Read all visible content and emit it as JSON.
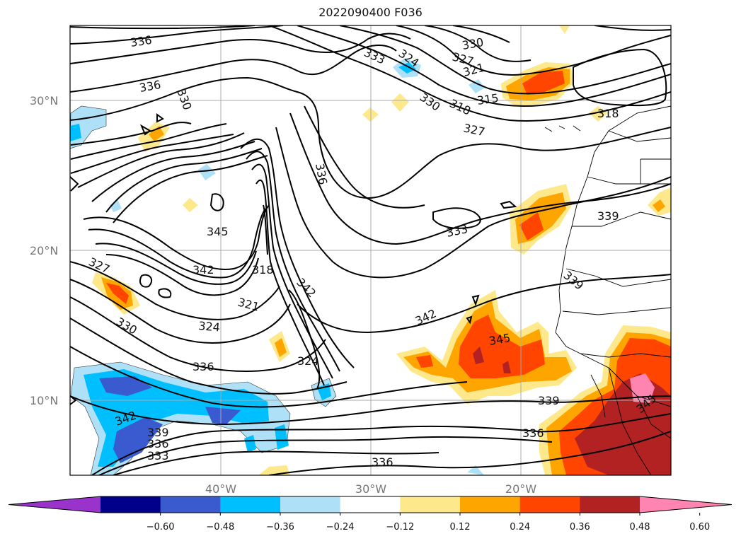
{
  "title": "2022090400 F036",
  "map": {
    "lat_ticks": [
      "30°N",
      "20°N",
      "10°N"
    ],
    "lon_ticks": [
      "40°W",
      "30°W",
      "20°W"
    ],
    "grid": true
  },
  "contour_labels": [
    "336",
    "336",
    "330",
    "333",
    "324",
    "330",
    "327",
    "321",
    "330",
    "318",
    "315",
    "327",
    "318",
    "336",
    "345",
    "333",
    "339",
    "327",
    "342",
    "318",
    "342",
    "321",
    "330",
    "324",
    "339",
    "342",
    "345",
    "336",
    "324",
    "339",
    "336",
    "342",
    "339",
    "336",
    "333",
    "336",
    "345"
  ],
  "colorbar": {
    "ticks": [
      "−0.60",
      "−0.48",
      "−0.36",
      "−0.24",
      "−0.12",
      "0.12",
      "0.24",
      "0.36",
      "0.48",
      "0.60"
    ],
    "colors": [
      "#9a33cc",
      "#00008b",
      "#3a5bd0",
      "#00bfff",
      "#aee1f7",
      "#ffffff",
      "#fde98c",
      "#ffa500",
      "#ff4500",
      "#b22222",
      "#ff85b0"
    ],
    "extend": "both"
  }
}
